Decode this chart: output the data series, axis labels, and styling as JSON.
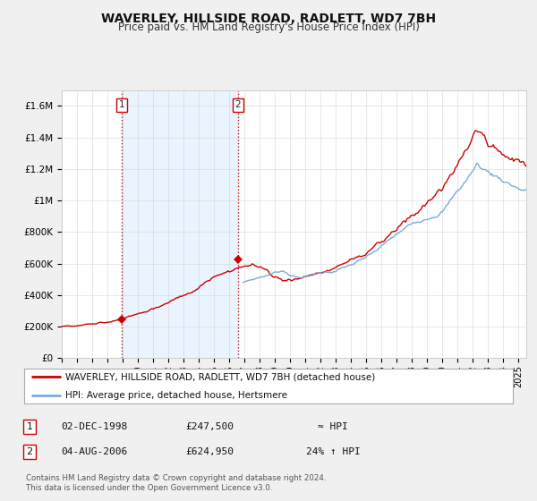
{
  "title": "WAVERLEY, HILLSIDE ROAD, RADLETT, WD7 7BH",
  "subtitle": "Price paid vs. HM Land Registry's House Price Index (HPI)",
  "legend_line1": "WAVERLEY, HILLSIDE ROAD, RADLETT, WD7 7BH (detached house)",
  "legend_line2": "HPI: Average price, detached house, Hertsmere",
  "sale1_label": "1",
  "sale2_label": "2",
  "sale1_date": "02-DEC-1998",
  "sale1_price": "£247,500",
  "sale1_hpi": "≈ HPI",
  "sale2_date": "04-AUG-2006",
  "sale2_price": "£624,950",
  "sale2_hpi": "24% ↑ HPI",
  "footer1": "Contains HM Land Registry data © Crown copyright and database right 2024.",
  "footer2": "This data is licensed under the Open Government Licence v3.0.",
  "price_color": "#cc0000",
  "hpi_color": "#7aabdc",
  "vline_color": "#cc0000",
  "shade_color": "#ddeeff",
  "bg_color": "#f0f0f0",
  "plot_bg": "#ffffff",
  "legend_border": "#aaaaaa",
  "grid_color": "#cccccc",
  "ylim": [
    0,
    1700000
  ],
  "xlim_start": 1995.0,
  "xlim_end": 2025.5,
  "sale1_x": 1998.92,
  "sale1_y": 247500,
  "sale2_x": 2006.58,
  "sale2_y": 624950,
  "yticks": [
    0,
    200000,
    400000,
    600000,
    800000,
    1000000,
    1200000,
    1400000,
    1600000
  ],
  "ytick_labels": [
    "£0",
    "£200K",
    "£400K",
    "£600K",
    "£800K",
    "£1M",
    "£1.2M",
    "£1.4M",
    "£1.6M"
  ]
}
